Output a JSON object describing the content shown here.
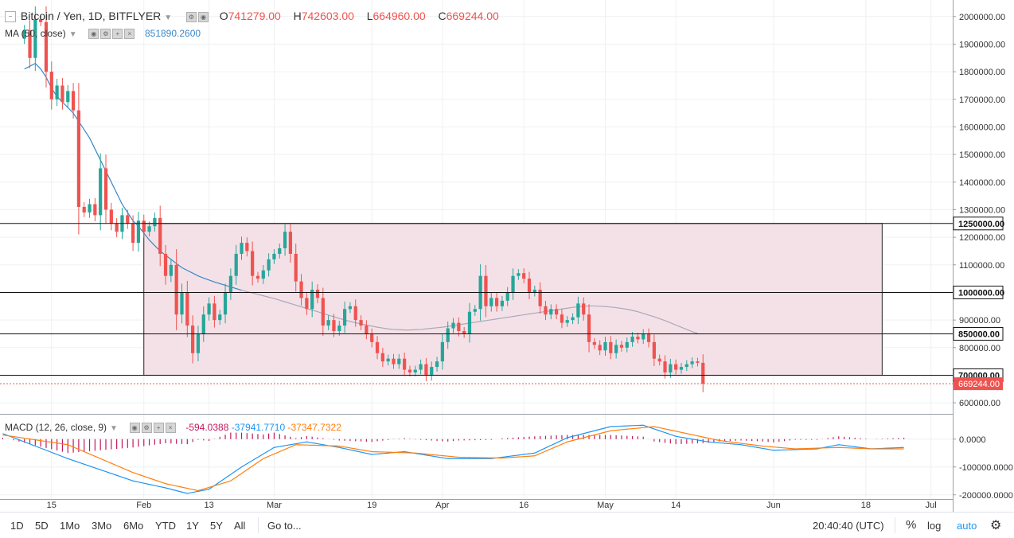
{
  "header": {
    "symbol": "Bitcoin / Yen, 1D, BITFLYER",
    "o_label": "O",
    "o_value": "741279.00",
    "h_label": "H",
    "h_value": "742603.00",
    "l_label": "L",
    "l_value": "664960.00",
    "c_label": "C",
    "c_value": "669244.00"
  },
  "ma": {
    "label": "MA (50, close)",
    "value": "851890.2600"
  },
  "macd": {
    "label": "MACD (12, 26, close, 9)",
    "hist": "-594.0388",
    "macd": "-37941.7710",
    "signal": "-37347.7322"
  },
  "bottom": {
    "ranges": [
      "1D",
      "5D",
      "1Mo",
      "3Mo",
      "6Mo",
      "YTD",
      "1Y",
      "5Y",
      "All"
    ],
    "goto": "Go to...",
    "time": "20:40:40 (UTC)",
    "pct": "%",
    "log": "log",
    "auto": "auto"
  },
  "colors": {
    "up": "#26a69a",
    "down": "#ef5350",
    "ma": "#3a87c8",
    "ma_faded": "#a9a9b8",
    "macd_line": "#2196f3",
    "signal_line": "#ff7f0e",
    "hist": "#c2185b",
    "box_fill": "#f4e1e7",
    "accent": "#2196f3"
  },
  "chart_data": [
    {
      "type": "candlestick",
      "title": "Bitcoin / Yen, 1D, BITFLYER",
      "ylim": [
        560000,
        2060000
      ],
      "y_ticks": [
        2000000,
        1900000,
        1800000,
        1700000,
        1600000,
        1500000,
        1400000,
        1300000,
        1200000,
        1100000,
        900000,
        800000,
        600000
      ],
      "y_tick_labels": [
        "2000000.00",
        "1900000.00",
        "1800000.00",
        "1700000.00",
        "1600000.00",
        "1500000.00",
        "1400000.00",
        "1300000.00",
        "1200000.00",
        "1100000.00",
        "900000.00",
        "800000.00",
        "600000.00"
      ],
      "x_labels": [
        {
          "label": "15",
          "day": 5
        },
        {
          "label": "Feb",
          "day": 22
        },
        {
          "label": "13",
          "day": 34
        },
        {
          "label": "Mar",
          "day": 46
        },
        {
          "label": "19",
          "day": 64
        },
        {
          "label": "Apr",
          "day": 77
        },
        {
          "label": "16",
          "day": 92
        },
        {
          "label": "May",
          "day": 107
        },
        {
          "label": "14",
          "day": 120
        },
        {
          "label": "Jun",
          "day": 138
        },
        {
          "label": "18",
          "day": 155
        },
        {
          "label": "Jul",
          "day": 167
        }
      ],
      "day_range": [
        -4.5,
        171
      ],
      "start_value": 1920000,
      "closes": [
        1950000,
        1850000,
        1990000,
        1980000,
        1800000,
        1700000,
        1750000,
        1690000,
        1730000,
        1660000,
        1310000,
        1290000,
        1320000,
        1280000,
        1450000,
        1300000,
        1250000,
        1220000,
        1280000,
        1250000,
        1180000,
        1260000,
        1220000,
        1240000,
        1270000,
        1140000,
        1060000,
        1100000,
        920000,
        1000000,
        880000,
        780000,
        850000,
        920000,
        960000,
        900000,
        920000,
        1000000,
        1060000,
        1140000,
        1180000,
        1150000,
        1060000,
        1050000,
        1080000,
        1120000,
        1140000,
        1160000,
        1220000,
        1140000,
        1040000,
        980000,
        940000,
        1010000,
        980000,
        880000,
        900000,
        860000,
        880000,
        940000,
        950000,
        900000,
        880000,
        850000,
        820000,
        780000,
        750000,
        760000,
        740000,
        760000,
        720000,
        710000,
        720000,
        740000,
        700000,
        730000,
        750000,
        820000,
        870000,
        890000,
        860000,
        850000,
        930000,
        940000,
        1060000,
        950000,
        980000,
        950000,
        970000,
        1000000,
        1060000,
        1070000,
        1050000,
        1000000,
        1010000,
        950000,
        920000,
        940000,
        920000,
        890000,
        900000,
        910000,
        960000,
        920000,
        820000,
        810000,
        790000,
        820000,
        780000,
        810000,
        800000,
        820000,
        840000,
        830000,
        850000,
        820000,
        760000,
        750000,
        710000,
        740000,
        720000,
        730000,
        740000,
        750000,
        745000,
        669244
      ],
      "ma50": [
        1810000,
        1820000,
        1830000,
        1810000,
        1780000,
        1740000,
        1710000,
        1690000,
        1670000,
        1650000,
        1620000,
        1590000,
        1560000,
        1520000,
        1480000,
        1440000,
        1400000,
        1360000,
        1320000,
        1290000,
        1260000,
        1240000,
        1215000,
        1190000,
        1170000,
        1150000,
        1135000,
        1120000,
        1105000,
        1090000,
        1080000,
        1070000,
        1060000,
        1052000,
        1045000,
        1038000,
        1032000,
        1026000,
        1020000,
        1014000,
        1008000,
        1003000,
        998000,
        993000,
        988000,
        983000,
        978000,
        972000,
        966000,
        960000,
        954000,
        948000,
        942000,
        936000,
        930000,
        924000,
        918000,
        912000,
        906000,
        900000,
        895000,
        890000,
        886000,
        882000,
        878000,
        874000,
        871000,
        868000,
        866000,
        865000,
        864000,
        864000,
        865000,
        866000,
        868000,
        870000,
        872000,
        874000,
        877000,
        880000,
        883000,
        886000,
        889000,
        892000,
        895000,
        898000,
        901000,
        904000,
        907000,
        910000,
        913000,
        916000,
        919000,
        922000,
        925000,
        928000,
        931000,
        934000,
        937000,
        940000,
        943000,
        946000,
        948000,
        950000,
        951000,
        951000,
        950000,
        949000,
        947000,
        945000,
        942000,
        939000,
        935000,
        930000,
        924000,
        918000,
        912000,
        905000,
        898000,
        890000,
        882000,
        874000,
        866000,
        858000,
        852000
      ]
    },
    {
      "type": "line",
      "title": "MACD (12, 26, close, 9)",
      "ylim": [
        -215000,
        85000
      ],
      "y_ticks": [
        0,
        -100000,
        -200000
      ],
      "y_tick_labels": [
        "0.0000",
        "-100000.0000",
        "-200000.0000"
      ],
      "series": [
        {
          "name": "MACD",
          "keypoints": [
            [
              -4,
              20000
            ],
            [
              8,
              -70000
            ],
            [
              14,
              -110000
            ],
            [
              20,
              -150000
            ],
            [
              26,
              -175000
            ],
            [
              30,
              -195000
            ],
            [
              34,
              -180000
            ],
            [
              40,
              -100000
            ],
            [
              46,
              -30000
            ],
            [
              52,
              -10000
            ],
            [
              58,
              -30000
            ],
            [
              64,
              -55000
            ],
            [
              70,
              -45000
            ],
            [
              78,
              -70000
            ],
            [
              86,
              -70000
            ],
            [
              94,
              -50000
            ],
            [
              100,
              5000
            ],
            [
              108,
              45000
            ],
            [
              114,
              50000
            ],
            [
              120,
              10000
            ],
            [
              126,
              -10000
            ],
            [
              132,
              -20000
            ],
            [
              138,
              -40000
            ],
            [
              146,
              -35000
            ],
            [
              150,
              -20000
            ],
            [
              156,
              -35000
            ],
            [
              162,
              -30000
            ]
          ]
        },
        {
          "name": "Signal",
          "keypoints": [
            [
              -4,
              15000
            ],
            [
              8,
              -20000
            ],
            [
              14,
              -70000
            ],
            [
              20,
              -120000
            ],
            [
              26,
              -160000
            ],
            [
              32,
              -185000
            ],
            [
              38,
              -150000
            ],
            [
              44,
              -70000
            ],
            [
              50,
              -20000
            ],
            [
              58,
              -25000
            ],
            [
              64,
              -45000
            ],
            [
              72,
              -50000
            ],
            [
              80,
              -65000
            ],
            [
              88,
              -68000
            ],
            [
              94,
              -60000
            ],
            [
              100,
              -10000
            ],
            [
              108,
              30000
            ],
            [
              116,
              45000
            ],
            [
              122,
              20000
            ],
            [
              128,
              -5000
            ],
            [
              136,
              -25000
            ],
            [
              142,
              -35000
            ],
            [
              150,
              -30000
            ],
            [
              156,
              -35000
            ],
            [
              162,
              -35000
            ]
          ]
        }
      ]
    }
  ]
}
